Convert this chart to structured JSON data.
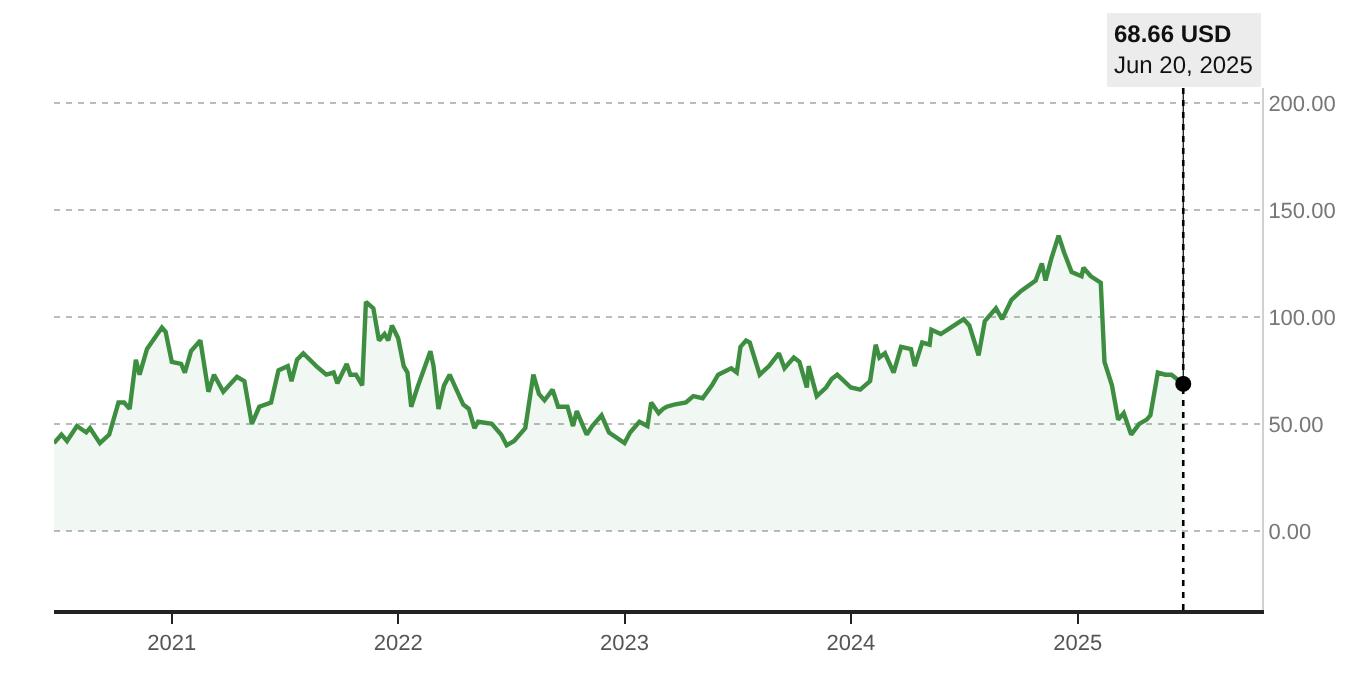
{
  "chart_data": {
    "type": "area",
    "x": [
      "2020-06-25",
      "2020-07-07",
      "2020-07-16",
      "2020-08-01",
      "2020-08-16",
      "2020-08-22",
      "2020-09-07",
      "2020-09-22",
      "2020-10-07",
      "2020-10-16",
      "2020-10-25",
      "2020-11-04",
      "2020-11-10",
      "2020-11-22",
      "2020-12-16",
      "2020-12-22",
      "2021-01-01",
      "2021-01-16",
      "2021-01-22",
      "2021-02-01",
      "2021-02-16",
      "2021-03-01",
      "2021-03-10",
      "2021-03-25",
      "2021-04-16",
      "2021-04-28",
      "2021-05-10",
      "2021-05-22",
      "2021-06-10",
      "2021-06-22",
      "2021-07-07",
      "2021-07-13",
      "2021-07-22",
      "2021-08-01",
      "2021-08-22",
      "2021-09-07",
      "2021-09-19",
      "2021-09-25",
      "2021-10-10",
      "2021-10-16",
      "2021-10-25",
      "2021-11-04",
      "2021-11-10",
      "2021-11-22",
      "2021-12-01",
      "2021-12-10",
      "2021-12-16",
      "2021-12-22",
      "2022-01-01",
      "2022-01-10",
      "2022-01-16",
      "2022-01-22",
      "2022-02-01",
      "2022-02-22",
      "2022-02-27",
      "2022-03-07",
      "2022-03-16",
      "2022-03-25",
      "2022-04-16",
      "2022-04-25",
      "2022-05-04",
      "2022-05-10",
      "2022-06-01",
      "2022-06-16",
      "2022-06-25",
      "2022-07-07",
      "2022-07-25",
      "2022-08-07",
      "2022-08-16",
      "2022-08-25",
      "2022-09-07",
      "2022-09-16",
      "2022-10-01",
      "2022-10-10",
      "2022-10-16",
      "2022-11-01",
      "2022-11-10",
      "2022-11-25",
      "2022-12-07",
      "2023-01-01",
      "2023-01-10",
      "2023-01-25",
      "2023-02-07",
      "2023-02-13",
      "2023-02-25",
      "2023-03-04",
      "2023-03-10",
      "2023-03-22",
      "2023-04-10",
      "2023-04-22",
      "2023-05-07",
      "2023-05-22",
      "2023-06-01",
      "2023-06-22",
      "2023-07-01",
      "2023-07-07",
      "2023-07-16",
      "2023-07-22",
      "2023-08-07",
      "2023-08-22",
      "2023-09-07",
      "2023-09-16",
      "2023-10-01",
      "2023-10-10",
      "2023-10-22",
      "2023-10-25",
      "2023-11-07",
      "2023-11-22",
      "2023-12-01",
      "2023-12-10",
      "2024-01-01",
      "2024-01-16",
      "2024-02-01",
      "2024-02-10",
      "2024-02-16",
      "2024-02-25",
      "2024-03-10",
      "2024-03-22",
      "2024-04-07",
      "2024-04-13",
      "2024-04-25",
      "2024-05-07",
      "2024-05-10",
      "2024-05-25",
      "2024-06-10",
      "2024-07-01",
      "2024-07-10",
      "2024-07-25",
      "2024-08-04",
      "2024-08-22",
      "2024-09-01",
      "2024-09-16",
      "2024-10-01",
      "2024-10-25",
      "2024-11-04",
      "2024-11-10",
      "2024-11-19",
      "2024-12-01",
      "2024-12-10",
      "2024-12-22",
      "2025-01-07",
      "2025-01-10",
      "2025-01-22",
      "2025-02-07",
      "2025-02-13",
      "2025-02-25",
      "2025-03-07",
      "2025-03-16",
      "2025-03-28",
      "2025-04-10",
      "2025-04-22",
      "2025-04-28",
      "2025-05-10",
      "2025-05-22",
      "2025-06-01",
      "2025-06-20"
    ],
    "series": [
      {
        "color": "#3e8e41",
        "values": [
          41,
          45,
          42,
          49,
          46,
          48,
          41,
          45,
          60,
          60,
          57,
          80,
          73,
          85,
          95,
          93,
          79,
          78,
          74,
          84,
          89,
          65,
          73,
          65,
          72,
          70,
          50,
          58,
          60,
          75,
          77,
          70,
          80,
          83,
          77,
          73,
          74,
          69,
          78,
          73,
          73,
          68,
          107,
          104,
          89,
          92,
          89,
          96,
          90,
          77,
          74,
          58,
          67,
          84,
          77,
          57,
          68,
          73,
          59,
          57,
          48,
          51,
          50,
          45,
          40,
          42,
          48,
          73,
          64,
          61,
          66,
          58,
          58,
          49,
          56,
          45,
          49,
          54,
          46,
          41,
          46,
          51,
          49,
          60,
          55,
          57,
          58,
          59,
          60,
          63,
          62,
          68,
          73,
          76,
          74,
          86,
          89,
          88,
          73,
          77,
          83,
          76,
          81,
          79,
          67,
          77,
          63,
          67,
          71,
          73,
          67,
          66,
          70,
          87,
          81,
          83,
          74,
          86,
          85,
          77,
          88,
          87,
          94,
          92,
          95,
          99,
          96,
          82,
          98,
          104,
          99,
          108,
          112,
          117,
          125,
          117,
          127,
          138,
          130,
          121,
          119,
          123,
          119,
          116,
          79,
          68,
          52,
          55,
          45,
          50,
          52,
          54,
          74,
          73,
          73,
          68.66
        ]
      }
    ],
    "xlim": [
      "2020-06-25",
      "2025-10-25"
    ],
    "xticks": [
      {
        "value": "2021-01-01",
        "label": "2021"
      },
      {
        "value": "2022-01-01",
        "label": "2022"
      },
      {
        "value": "2023-01-01",
        "label": "2023"
      },
      {
        "value": "2024-01-01",
        "label": "2024"
      },
      {
        "value": "2025-01-01",
        "label": "2025"
      }
    ],
    "ylim": [
      -37,
      207
    ],
    "yticks": [
      {
        "value": 0,
        "label": "0.00"
      },
      {
        "value": 50,
        "label": "50.00"
      },
      {
        "value": 100,
        "label": "100.00"
      },
      {
        "value": 150,
        "label": "150.00"
      },
      {
        "value": 200,
        "label": "200.00"
      }
    ],
    "grid": "y",
    "marker": "none",
    "ref_lines": [
      {
        "axis": "x",
        "value": "2025-06-20",
        "color": "#000000",
        "line_style": "dotted"
      }
    ],
    "annotations": [
      {
        "text": "68.66 USD\nJun 20, 2025",
        "x": "2025-06-20",
        "y": 68.66
      }
    ]
  }
}
